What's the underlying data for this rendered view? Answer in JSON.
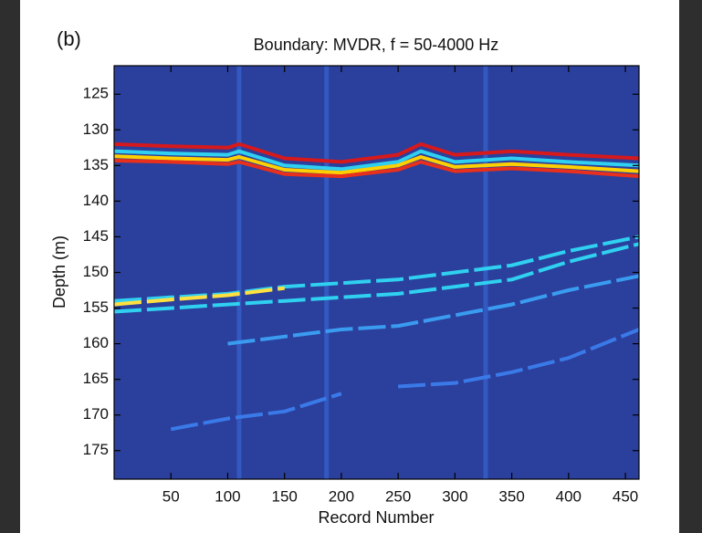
{
  "chart_data": {
    "type": "heatmap",
    "panel_label": "(b)",
    "title": "Boundary: MVDR, f = 50-4000 Hz",
    "x_label": "Record Number",
    "y_label": "Depth (m)",
    "xlim": [
      0,
      462
    ],
    "ylim": [
      121,
      179
    ],
    "y_reversed": true,
    "xticks": [
      50,
      100,
      150,
      200,
      250,
      300,
      350,
      400,
      450
    ],
    "yticks": [
      125,
      130,
      135,
      140,
      145,
      150,
      155,
      160,
      165,
      170,
      175
    ],
    "background_color": "#2b3f9c",
    "noise_columns": [
      110,
      187,
      327
    ],
    "noise_color": "#3a6fe0",
    "reflectors": [
      {
        "color": "#d7191c",
        "x": [
          0,
          50,
          100,
          110,
          150,
          200,
          250,
          270,
          300,
          350,
          400,
          462
        ],
        "values": [
          132,
          132.3,
          132.5,
          132,
          134,
          134.5,
          133.5,
          132,
          133.5,
          133,
          133.5,
          134
        ]
      },
      {
        "color": "#2fd0f0",
        "x": [
          0,
          50,
          100,
          110,
          150,
          200,
          250,
          270,
          300,
          350,
          400,
          462
        ],
        "values": [
          133,
          133.3,
          133.5,
          133,
          135,
          135.5,
          134.5,
          133,
          134.5,
          134,
          134.5,
          135
        ]
      },
      {
        "color": "#ffd000",
        "x": [
          0,
          50,
          100,
          110,
          150,
          200,
          250,
          270,
          300,
          350,
          400,
          462
        ],
        "values": [
          133.7,
          134,
          134.2,
          133.8,
          135.6,
          136,
          135,
          133.8,
          135.2,
          134.8,
          135.2,
          135.8
        ]
      },
      {
        "color": "#e8301c",
        "x": [
          0,
          50,
          100,
          110,
          150,
          200,
          250,
          270,
          300,
          350,
          400,
          462
        ],
        "values": [
          134.3,
          134.5,
          134.8,
          134.5,
          136.2,
          136.5,
          135.6,
          134.5,
          135.8,
          135.4,
          135.8,
          136.5
        ]
      },
      {
        "color": "#2fd0f0",
        "x": [
          0,
          50,
          100,
          150,
          200,
          250,
          300,
          350,
          400,
          462
        ],
        "values": [
          154,
          153.5,
          153,
          152,
          151.5,
          151,
          150,
          149,
          147,
          145
        ]
      },
      {
        "color": "#ffe040",
        "x": [
          0,
          50,
          100,
          150
        ],
        "values": [
          154.5,
          153.8,
          153.2,
          152.2
        ]
      },
      {
        "color": "#2fd0f0",
        "x": [
          0,
          50,
          100,
          150,
          200,
          250,
          300,
          350,
          400,
          462
        ],
        "values": [
          155.5,
          155,
          154.5,
          154,
          153.5,
          153,
          152,
          151,
          148.5,
          146
        ]
      },
      {
        "color": "#3a9cf0",
        "x": [
          100,
          150,
          200,
          250,
          300,
          350,
          400,
          462
        ],
        "values": [
          160,
          159,
          158,
          157.5,
          156,
          154.5,
          152.5,
          150.5
        ]
      },
      {
        "color": "#3a7ae8",
        "x": [
          250,
          300,
          350,
          400,
          462
        ],
        "values": [
          166,
          165.5,
          164,
          162,
          158
        ]
      },
      {
        "color": "#3a7ae8",
        "x": [
          50,
          100,
          150,
          200
        ],
        "values": [
          172,
          170.5,
          169.5,
          167
        ]
      }
    ]
  }
}
